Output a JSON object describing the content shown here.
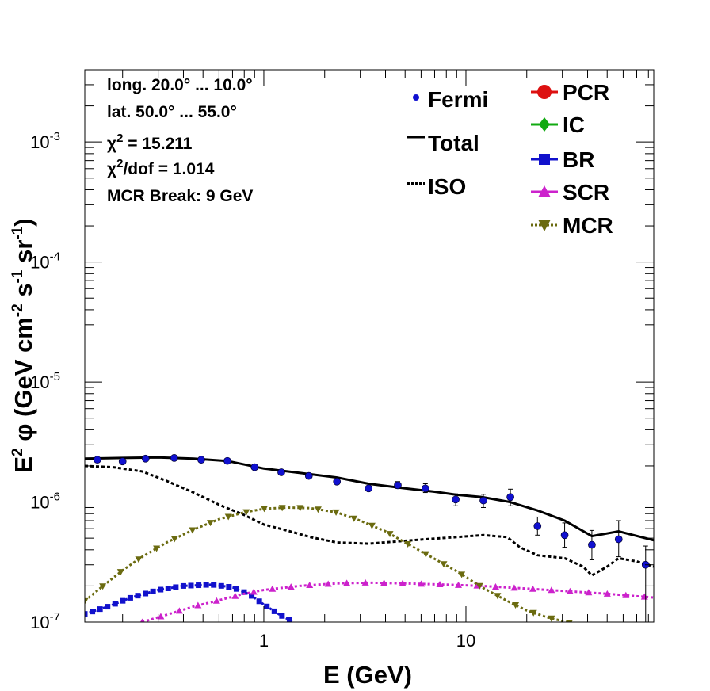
{
  "chart_data": {
    "type": "line",
    "title": "",
    "xlabel": "E (GeV)",
    "ylabel_parts": [
      "E",
      "2",
      " φ (GeV cm",
      "-2",
      " s",
      "-1",
      " sr",
      "-1",
      ")"
    ],
    "x_scale": "log",
    "y_scale": "log",
    "xlim": [
      0.13,
      85
    ],
    "ylim": [
      1e-07,
      0.004
    ],
    "x_ticks": [
      {
        "value": 1,
        "label": "1"
      },
      {
        "value": 10,
        "label": "10"
      }
    ],
    "y_ticks": [
      {
        "value": 1e-07,
        "base": "10",
        "exp": "-7"
      },
      {
        "value": 1e-06,
        "base": "10",
        "exp": "-6"
      },
      {
        "value": 1e-05,
        "base": "10",
        "exp": "-5"
      },
      {
        "value": 0.0001,
        "base": "10",
        "exp": "-4"
      },
      {
        "value": 0.001,
        "base": "10",
        "exp": "-3"
      }
    ],
    "info_lines": [
      {
        "text": "long. 20.0° ... 10.0°"
      },
      {
        "text": "lat. 50.0° ... 55.0°"
      },
      {
        "pre": "χ",
        "sup": "2",
        "post": " = 15.211"
      },
      {
        "pre": "χ",
        "sup": "2",
        "post": "/dof = 1.014"
      },
      {
        "text": "MCR Break:  9 GeV"
      }
    ],
    "legend": [
      {
        "label": "Fermi",
        "style": "points",
        "color": "#1010d0"
      },
      {
        "label": "Total",
        "style": "solid",
        "color": "#000000"
      },
      {
        "label": "ISO",
        "style": "dotted",
        "color": "#000000"
      },
      {
        "label": "PCR",
        "style": "circle",
        "color": "#dd1111"
      },
      {
        "label": "IC",
        "style": "diamond",
        "color": "#11aa11"
      },
      {
        "label": "BR",
        "style": "square",
        "color": "#1111cc"
      },
      {
        "label": "SCR",
        "style": "triangle-up",
        "color": "#cc22cc"
      },
      {
        "label": "MCR",
        "style": "triangle-down",
        "color": "#6b6b10"
      }
    ],
    "fermi": {
      "x": [
        0.15,
        0.2,
        0.26,
        0.36,
        0.49,
        0.66,
        0.9,
        1.22,
        1.67,
        2.3,
        3.3,
        4.6,
        6.3,
        8.9,
        12.2,
        16.6,
        22.6,
        30.8,
        42.0,
        57.0,
        77.5
      ],
      "y": [
        2.25e-06,
        2.18e-06,
        2.3e-06,
        2.33e-06,
        2.25e-06,
        2.2e-06,
        1.95e-06,
        1.77e-06,
        1.65e-06,
        1.48e-06,
        1.3e-06,
        1.38e-06,
        1.3e-06,
        1.05e-06,
        1.03e-06,
        1.1e-06,
        6.3e-07,
        5.3e-07,
        4.4e-07,
        4.9e-07,
        3e-07
      ],
      "err_lo": [
        2.17e-06,
        2.1e-06,
        2.22e-06,
        2.25e-06,
        2.17e-06,
        2.12e-06,
        1.88e-06,
        1.71e-06,
        1.59e-06,
        1.42e-06,
        1.24e-06,
        1.3e-06,
        1.2e-06,
        9.3e-07,
        9e-07,
        9.3e-07,
        5.3e-07,
        4.2e-07,
        3.3e-07,
        3.5e-07,
        1e-07
      ],
      "err_hi": [
        2.33e-06,
        2.26e-06,
        2.38e-06,
        2.41e-06,
        2.33e-06,
        2.28e-06,
        2.02e-06,
        1.83e-06,
        1.71e-06,
        1.54e-06,
        1.36e-06,
        1.48e-06,
        1.42e-06,
        1.17e-06,
        1.16e-06,
        1.28e-06,
        7.5e-07,
        6.7e-07,
        5.8e-07,
        7e-07,
        4.3e-07
      ]
    },
    "series": [
      {
        "name": "Total",
        "color": "#000000",
        "marker": "none",
        "x": [
          0.13,
          0.2,
          0.3,
          0.45,
          0.66,
          1.0,
          1.5,
          2.3,
          3.3,
          5.0,
          7.0,
          9.0,
          12.0,
          16.5,
          22.6,
          30.8,
          42.0,
          57.0,
          85.0
        ],
        "y": [
          2.3e-06,
          2.33e-06,
          2.35e-06,
          2.3e-06,
          2.2e-06,
          1.9e-06,
          1.75e-06,
          1.6e-06,
          1.42e-06,
          1.3e-06,
          1.22e-06,
          1.15e-06,
          1.1e-06,
          1e-06,
          8.5e-07,
          7e-07,
          5.2e-07,
          5.7e-07,
          4.8e-07
        ]
      },
      {
        "name": "ISO",
        "color": "#000000",
        "marker": "none",
        "x": [
          0.13,
          0.18,
          0.25,
          0.33,
          0.45,
          0.6,
          0.8,
          1.0,
          1.3,
          1.7,
          2.3,
          3.3,
          4.6,
          6.3,
          9.0,
          12.2,
          16.0,
          18.5,
          22.6,
          30.8,
          38.0,
          42.0,
          50.0,
          57.0,
          70.0,
          85.0
        ],
        "y": [
          2e-06,
          1.95e-06,
          1.8e-06,
          1.5e-06,
          1.2e-06,
          9.5e-07,
          7.8e-07,
          6.5e-07,
          5.8e-07,
          5.1e-07,
          4.6e-07,
          4.5e-07,
          4.7e-07,
          4.9e-07,
          5.1e-07,
          5.3e-07,
          5.1e-07,
          4.2e-07,
          3.6e-07,
          3.4e-07,
          2.9e-07,
          2.45e-07,
          2.9e-07,
          3.4e-07,
          3.2e-07,
          2.9e-07
        ]
      },
      {
        "name": "BR",
        "color": "#1111cc",
        "marker": "square",
        "x": [
          0.13,
          0.17,
          0.22,
          0.3,
          0.4,
          0.55,
          0.7,
          0.85,
          1.0,
          1.2,
          1.4
        ],
        "y": [
          1.17e-07,
          1.35e-07,
          1.6e-07,
          1.85e-07,
          2e-07,
          2.05e-07,
          1.95e-07,
          1.7e-07,
          1.4e-07,
          1.15e-07,
          1e-07
        ]
      },
      {
        "name": "SCR",
        "color": "#cc22cc",
        "marker": "triangle-up",
        "x": [
          0.25,
          0.33,
          0.45,
          0.6,
          0.8,
          1.0,
          1.5,
          2.3,
          3.3,
          5.0,
          8.0,
          12.0,
          20.0,
          30.0,
          50.0,
          85.0
        ],
        "y": [
          1e-07,
          1.15e-07,
          1.35e-07,
          1.52e-07,
          1.72e-07,
          1.85e-07,
          2e-07,
          2.1e-07,
          2.13e-07,
          2.1e-07,
          2.05e-07,
          2e-07,
          1.9e-07,
          1.82e-07,
          1.72e-07,
          1.6e-07
        ]
      },
      {
        "name": "MCR",
        "color": "#6b6b10",
        "marker": "triangle-down",
        "x": [
          0.13,
          0.16,
          0.2,
          0.25,
          0.33,
          0.45,
          0.6,
          0.8,
          1.0,
          1.3,
          1.7,
          2.3,
          3.0,
          4.0,
          5.0,
          6.5,
          9.0,
          12.0,
          16.0,
          20.0,
          25.0,
          30.0,
          36.0
        ],
        "y": [
          1.5e-07,
          2e-07,
          2.7e-07,
          3.5e-07,
          4.6e-07,
          5.9e-07,
          7.2e-07,
          8.2e-07,
          8.8e-07,
          9e-07,
          8.9e-07,
          8.2e-07,
          7e-07,
          5.7e-07,
          4.6e-07,
          3.6e-07,
          2.65e-07,
          1.95e-07,
          1.5e-07,
          1.25e-07,
          1.1e-07,
          1.02e-07,
          9.5e-08
        ]
      }
    ]
  }
}
